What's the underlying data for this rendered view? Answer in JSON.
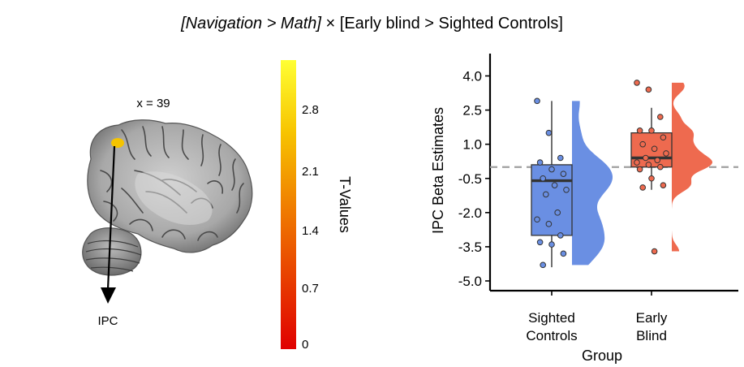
{
  "title": {
    "italic_part": "[Navigation > Math]",
    "cross": "×",
    "plain_part": "[Early blind > Sighted Controls]"
  },
  "brain": {
    "slice_label": "x = 39",
    "region_label": "IPC",
    "cluster_color": "#f5c400"
  },
  "colorbar": {
    "label": "T-Values",
    "ticks": [
      "2.8",
      "2.1",
      "1.4",
      "0.7",
      "0"
    ],
    "colors": [
      "#ffff33",
      "#f7c400",
      "#f08000",
      "#e84000",
      "#e00000"
    ]
  },
  "chart_data": {
    "type": "box",
    "xlabel": "Group",
    "ylabel": "IPC Beta Estimates",
    "ylim": [
      -5.0,
      4.0
    ],
    "yticks": [
      "4.0",
      "2.5",
      "1.0",
      "-0.5",
      "-2.0",
      "-3.5",
      "-5.0"
    ],
    "reference_line": 0,
    "categories": [
      "Sighted\nControls",
      "Early\nBlind"
    ],
    "groups": [
      {
        "label_line1": "Sighted",
        "label_line2": "Controls",
        "color": "#6a8fe3",
        "box": {
          "min": -4.4,
          "q1": -3.0,
          "median": -0.6,
          "q3": 0.1,
          "max": 2.9
        },
        "points": [
          2.9,
          1.5,
          0.4,
          0.2,
          -0.1,
          -0.3,
          -0.5,
          -0.8,
          -1.0,
          -1.2,
          -2.0,
          -2.3,
          -2.5,
          -3.0,
          -3.3,
          -3.4,
          -3.8,
          -4.3
        ]
      },
      {
        "label_line1": "Early",
        "label_line2": "Blind",
        "color": "#ee6a4f",
        "box": {
          "min": -1.0,
          "q1": 0.0,
          "median": 0.4,
          "q3": 1.5,
          "max": 2.6
        },
        "points": [
          3.7,
          3.4,
          2.2,
          1.6,
          1.6,
          1.3,
          1.0,
          0.8,
          0.6,
          0.4,
          0.3,
          0.2,
          0.1,
          0.0,
          -0.1,
          -0.5,
          -0.8,
          -0.9,
          -3.7
        ]
      }
    ],
    "grid": false,
    "legend": "none"
  }
}
